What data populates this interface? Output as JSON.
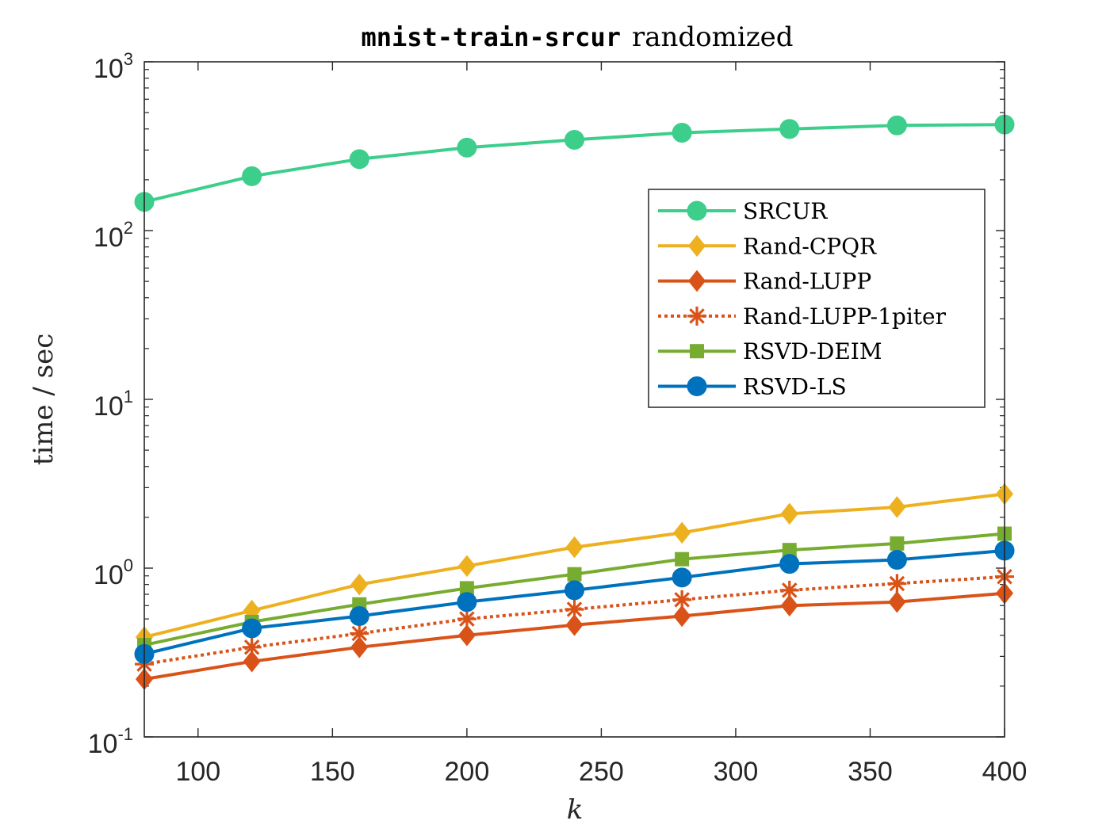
{
  "chart_data": {
    "type": "line",
    "title": {
      "mono": "mnist-train-srcur",
      "text": "randomized"
    },
    "xlabel": "k",
    "ylabel": "time / sec",
    "xlim": [
      80,
      400
    ],
    "ylim": [
      0.1,
      1000
    ],
    "yscale": "log",
    "xticks": [
      100,
      150,
      200,
      250,
      300,
      350,
      400
    ],
    "yticks": [
      {
        "value": 0.1,
        "base": "10",
        "exp": "-1"
      },
      {
        "value": 1,
        "base": "10",
        "exp": "0"
      },
      {
        "value": 10,
        "base": "10",
        "exp": "1"
      },
      {
        "value": 100,
        "base": "10",
        "exp": "2"
      },
      {
        "value": 1000,
        "base": "10",
        "exp": "3"
      }
    ],
    "grid": false,
    "legend_position": "top-right",
    "x": [
      80,
      120,
      160,
      200,
      240,
      280,
      320,
      360,
      400
    ],
    "series": [
      {
        "name": "SRCUR",
        "color": "#3dce8b",
        "marker": "circle",
        "dash": "solid",
        "values": [
          148,
          210,
          265,
          310,
          345,
          380,
          400,
          420,
          425
        ]
      },
      {
        "name": "Rand-CPQR",
        "color": "#edb120",
        "marker": "diamond",
        "dash": "solid",
        "values": [
          0.39,
          0.56,
          0.8,
          1.03,
          1.33,
          1.62,
          2.1,
          2.3,
          2.75
        ]
      },
      {
        "name": "Rand-LUPP",
        "color": "#d95319",
        "marker": "diamond",
        "dash": "solid",
        "values": [
          0.22,
          0.28,
          0.34,
          0.4,
          0.46,
          0.52,
          0.6,
          0.63,
          0.71
        ]
      },
      {
        "name": "Rand-LUPP-1piter",
        "color": "#d95319",
        "marker": "asterisk",
        "dash": "dotted",
        "values": [
          0.27,
          0.34,
          0.41,
          0.5,
          0.57,
          0.65,
          0.74,
          0.81,
          0.89
        ]
      },
      {
        "name": "RSVD-DEIM",
        "color": "#77ac30",
        "marker": "square",
        "dash": "solid",
        "values": [
          0.35,
          0.48,
          0.61,
          0.76,
          0.92,
          1.13,
          1.28,
          1.4,
          1.6
        ]
      },
      {
        "name": "RSVD-LS",
        "color": "#0072bd",
        "marker": "circle",
        "dash": "solid",
        "values": [
          0.31,
          0.44,
          0.52,
          0.63,
          0.74,
          0.88,
          1.06,
          1.12,
          1.27
        ]
      }
    ]
  }
}
